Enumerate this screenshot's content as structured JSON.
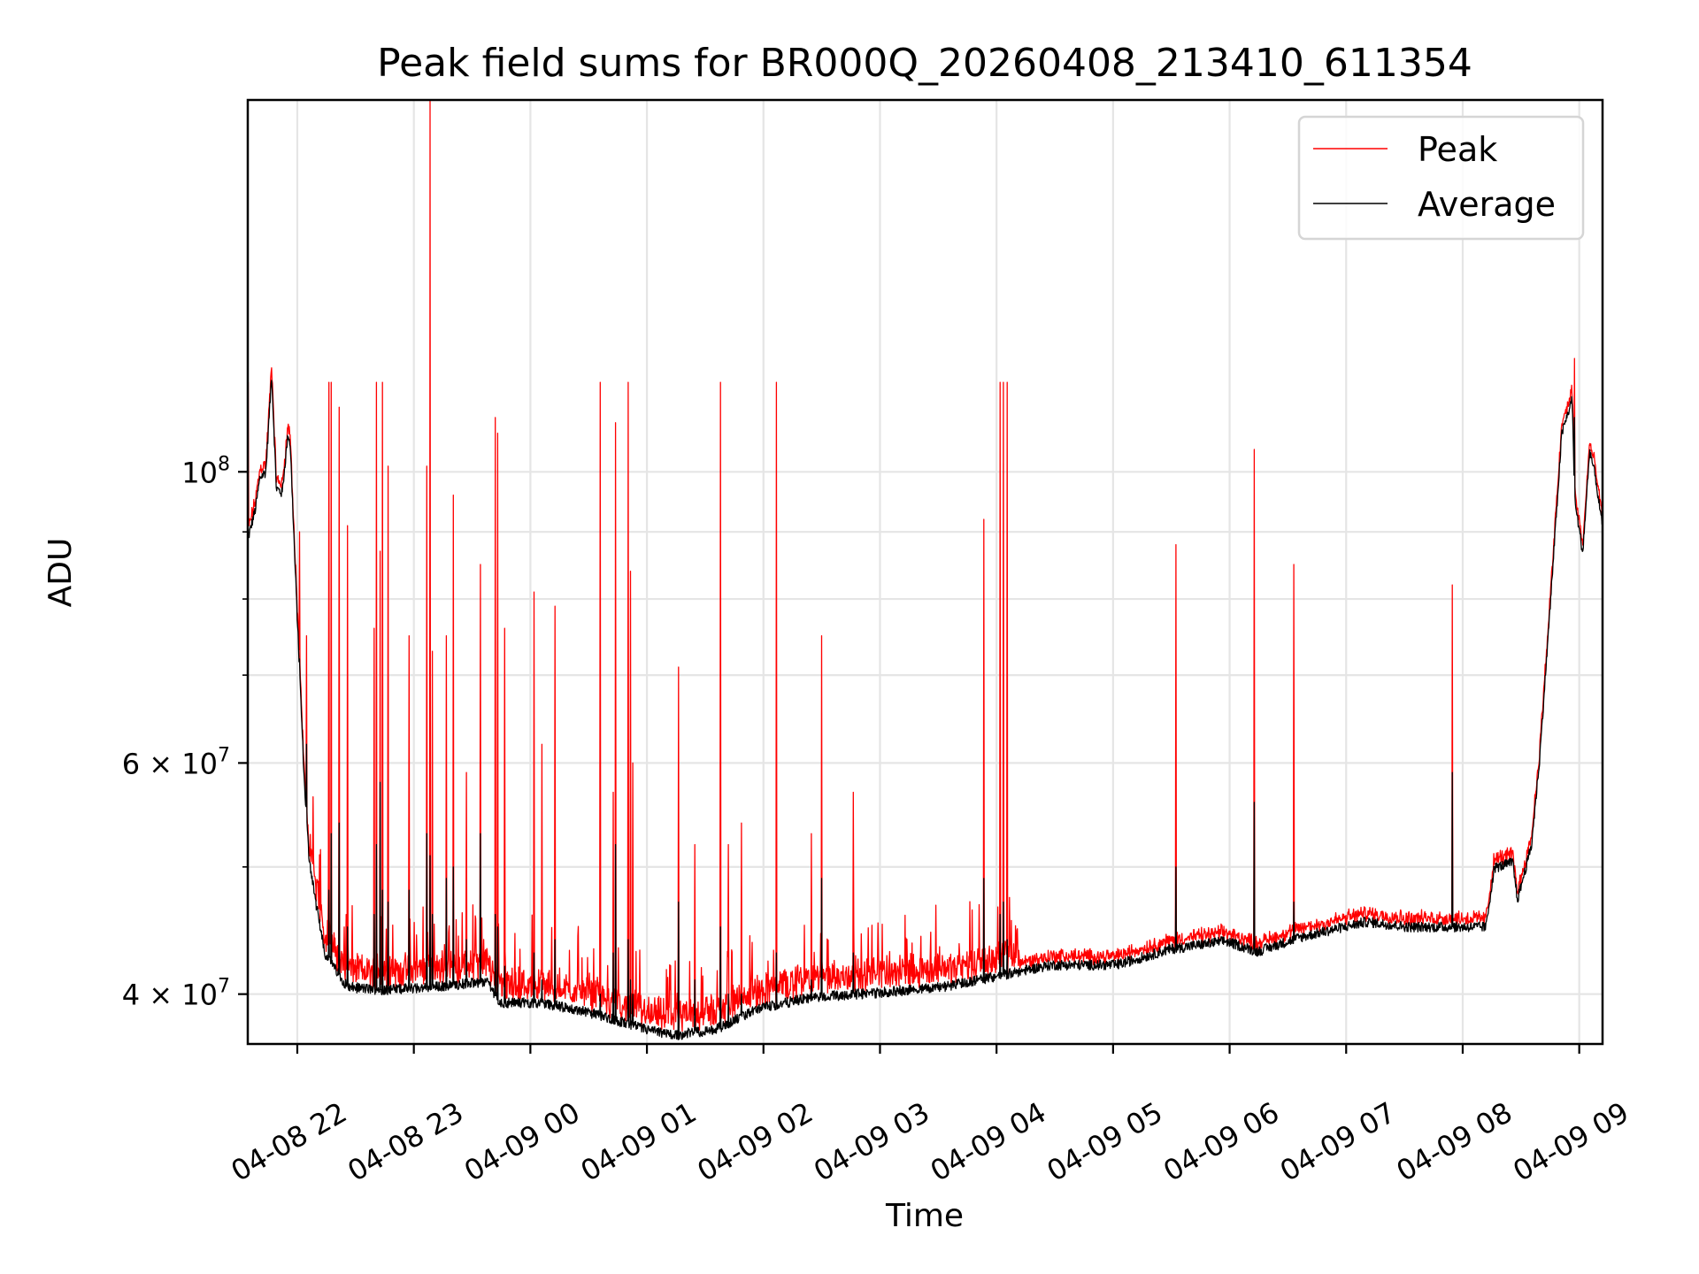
{
  "chart_data": {
    "type": "line",
    "title": "Peak field sums for BR000Q_20260408_213410_611354",
    "xlabel": "Time",
    "ylabel": "ADU",
    "x_unit": "hours since 04-08 00:00",
    "xlim": [
      21.575,
      33.2
    ],
    "ylim": [
      36650000,
      192000000
    ],
    "yscale": "log",
    "grid": true,
    "legend_placement": "top-right",
    "x_ticks": [
      {
        "value": 22,
        "label": "04-08 22"
      },
      {
        "value": 23,
        "label": "04-08 23"
      },
      {
        "value": 24,
        "label": "04-09 00"
      },
      {
        "value": 25,
        "label": "04-09 01"
      },
      {
        "value": 26,
        "label": "04-09 02"
      },
      {
        "value": 27,
        "label": "04-09 03"
      },
      {
        "value": 28,
        "label": "04-09 04"
      },
      {
        "value": 29,
        "label": "04-09 05"
      },
      {
        "value": 30,
        "label": "04-09 06"
      },
      {
        "value": 31,
        "label": "04-09 07"
      },
      {
        "value": 32,
        "label": "04-09 08"
      },
      {
        "value": 33,
        "label": "04-09 09"
      }
    ],
    "y_ticks": [
      {
        "value": 40000000,
        "base": "4 × 10",
        "exp": "7"
      },
      {
        "value": 60000000,
        "base": "6 × 10",
        "exp": "7"
      },
      {
        "value": 100000000,
        "base": "10",
        "exp": "8"
      }
    ],
    "y_minor_ticks": [
      50000000,
      70000000,
      80000000,
      90000000
    ],
    "series": [
      {
        "name": "Peak",
        "color": "#ff0000"
      },
      {
        "name": "Average",
        "color": "#000000"
      }
    ],
    "average_trend": [
      [
        21.57,
        88400000.0
      ],
      [
        21.64,
        93600000.0
      ],
      [
        21.68,
        99000000.0
      ],
      [
        21.73,
        100000000.0
      ],
      [
        21.78,
        118700000.0
      ],
      [
        21.82,
        97200000.0
      ],
      [
        21.87,
        96300000.0
      ],
      [
        21.92,
        106900000.0
      ],
      [
        21.94,
        104800000.0
      ],
      [
        21.98,
        85100000.0
      ],
      [
        22.02,
        70400000.0
      ],
      [
        22.06,
        58100000.0
      ],
      [
        22.1,
        50900000.0
      ],
      [
        22.17,
        46300000.0
      ],
      [
        22.24,
        42900000.0
      ],
      [
        22.43,
        40500000.0
      ],
      [
        22.71,
        40300000.0
      ],
      [
        23.17,
        40500000.0
      ],
      [
        23.64,
        40900000.0
      ],
      [
        23.73,
        39400000.0
      ],
      [
        24.1,
        39400000.0
      ],
      [
        24.57,
        38600000.0
      ],
      [
        24.99,
        37600000.0
      ],
      [
        25.22,
        37200000.0
      ],
      [
        25.59,
        37600000.0
      ],
      [
        25.96,
        39000000.0
      ],
      [
        26.43,
        39800000.0
      ],
      [
        26.99,
        40100000.0
      ],
      [
        27.54,
        40500000.0
      ],
      [
        28.01,
        41300000.0
      ],
      [
        28.47,
        42100000.0
      ],
      [
        29.03,
        42100000.0
      ],
      [
        29.5,
        43300000.0
      ],
      [
        29.96,
        43900000.0
      ],
      [
        30.24,
        43100000.0
      ],
      [
        30.61,
        44200000.0
      ],
      [
        31.17,
        45400000.0
      ],
      [
        31.54,
        45000000.0
      ],
      [
        32.2,
        45000000.0
      ],
      [
        32.27,
        49900000.0
      ],
      [
        32.43,
        50400000.0
      ],
      [
        32.47,
        47200000.0
      ],
      [
        32.59,
        51900000.0
      ],
      [
        32.66,
        60400000.0
      ],
      [
        32.75,
        78800000.0
      ],
      [
        32.85,
        106900000.0
      ],
      [
        32.94,
        113600000.0
      ],
      [
        32.96,
        95400000.0
      ],
      [
        33.03,
        86700000.0
      ],
      [
        33.09,
        103900000.0
      ],
      [
        33.14,
        99000000.0
      ],
      [
        33.19,
        91800000.0
      ]
    ],
    "spikes": [
      [
        21.58,
        117000000.0,
        90000000.0
      ],
      [
        22.02,
        90000000.0,
        72000000.0
      ],
      [
        22.08,
        75000000.0,
        62000000.0
      ],
      [
        22.27,
        117000000.0,
        48000000.0
      ],
      [
        22.29,
        117000000.0,
        53000000.0
      ],
      [
        22.36,
        112000000.0,
        54000000.0
      ],
      [
        22.43,
        91000000.0,
        45000000.0
      ],
      [
        22.66,
        76000000.0,
        46000000.0
      ],
      [
        22.68,
        117000000.0,
        52000000.0
      ],
      [
        22.71,
        87000000.0,
        58000000.0
      ],
      [
        22.73,
        117000000.0,
        48000000.0
      ],
      [
        22.78,
        101000000.0,
        47000000.0
      ],
      [
        22.96,
        75000000.0,
        48000000.0
      ],
      [
        23.11,
        101000000.0,
        53000000.0
      ],
      [
        23.14,
        192000000.0,
        51000000.0
      ],
      [
        23.16,
        73000000.0,
        46000000.0
      ],
      [
        23.28,
        75000000.0,
        49000000.0
      ],
      [
        23.34,
        96000000.0,
        50000000.0
      ],
      [
        23.45,
        59000000.0,
        44000000.0
      ],
      [
        23.57,
        85000000.0,
        53000000.0
      ],
      [
        23.7,
        110000000.0,
        46000000.0
      ],
      [
        23.72,
        107000000.0,
        45000000.0
      ],
      [
        23.78,
        76000000.0,
        42000000.0
      ],
      [
        24.03,
        81000000.0,
        43000000.0
      ],
      [
        24.1,
        62000000.0,
        41000000.0
      ],
      [
        24.21,
        79000000.0,
        44000000.0
      ],
      [
        24.6,
        117000000.0,
        40000000.0
      ],
      [
        24.71,
        57000000.0,
        43000000.0
      ],
      [
        24.73,
        109000000.0,
        52000000.0
      ],
      [
        24.84,
        117000000.0,
        44000000.0
      ],
      [
        24.86,
        84000000.0,
        41000000.0
      ],
      [
        24.88,
        60000000.0,
        40000000.0
      ],
      [
        25.27,
        71000000.0,
        47000000.0
      ],
      [
        25.41,
        52000000.0,
        41000000.0
      ],
      [
        25.63,
        117000000.0,
        45000000.0
      ],
      [
        25.7,
        52000000.0,
        40000000.0
      ],
      [
        25.81,
        54000000.0,
        40000000.0
      ],
      [
        26.11,
        117000000.0,
        43000000.0
      ],
      [
        26.41,
        53000000.0,
        41000000.0
      ],
      [
        26.5,
        75000000.0,
        49000000.0
      ],
      [
        26.77,
        57000000.0,
        43000000.0
      ],
      [
        27.89,
        92000000.0,
        49000000.0
      ],
      [
        28.03,
        117000000.0,
        46000000.0
      ],
      [
        28.06,
        117000000.0,
        47000000.0
      ],
      [
        28.09,
        117000000.0,
        44000000.0
      ],
      [
        29.54,
        88000000.0,
        50000000.0
      ],
      [
        30.21,
        104000000.0,
        56000000.0
      ],
      [
        30.55,
        85000000.0,
        47000000.0
      ],
      [
        31.91,
        82000000.0,
        59000000.0
      ],
      [
        32.96,
        122000000.0,
        110000000.0
      ]
    ]
  }
}
